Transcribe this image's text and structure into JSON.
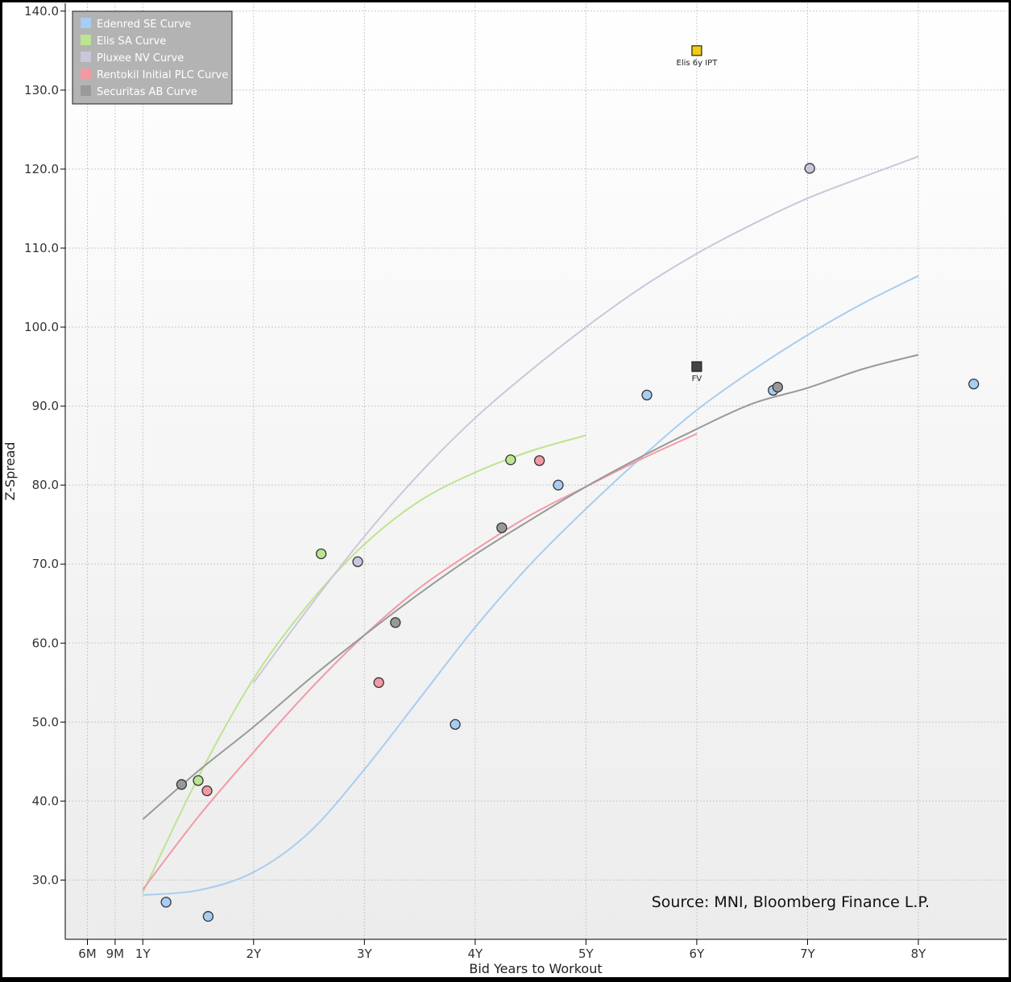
{
  "chart_data": {
    "type": "scatter",
    "title": "",
    "xlabel": "Bid Years to Workout",
    "ylabel": "Z-Spread",
    "xlim": [
      0.3,
      8.8
    ],
    "ylim": [
      22.5,
      141
    ],
    "grid": true,
    "legend_position": "top-left",
    "source": "Source: MNI, Bloomberg Finance L.P.",
    "x_ticks": [
      {
        "label": "6M",
        "value": 0.5
      },
      {
        "label": "9M",
        "value": 0.75
      },
      {
        "label": "1Y",
        "value": 1
      },
      {
        "label": "2Y",
        "value": 2
      },
      {
        "label": "3Y",
        "value": 3
      },
      {
        "label": "4Y",
        "value": 4
      },
      {
        "label": "5Y",
        "value": 5
      },
      {
        "label": "6Y",
        "value": 6
      },
      {
        "label": "7Y",
        "value": 7
      },
      {
        "label": "8Y",
        "value": 8
      }
    ],
    "y_ticks": [
      {
        "label": "30.0",
        "value": 30
      },
      {
        "label": "40.0",
        "value": 40
      },
      {
        "label": "50.0",
        "value": 50
      },
      {
        "label": "60.0",
        "value": 60
      },
      {
        "label": "70.0",
        "value": 70
      },
      {
        "label": "80.0",
        "value": 80
      },
      {
        "label": "90.0",
        "value": 90
      },
      {
        "label": "100.0",
        "value": 100
      },
      {
        "label": "110.0",
        "value": 110
      },
      {
        "label": "120.0",
        "value": 120
      },
      {
        "label": "130.0",
        "value": 130
      },
      {
        "label": "140.0",
        "value": 140
      }
    ],
    "series": [
      {
        "name": "Edenred SE Curve",
        "color": "#a6cdf2",
        "curve": [
          [
            1,
            28.1
          ],
          [
            1.5,
            28.7
          ],
          [
            2,
            31
          ],
          [
            2.5,
            36
          ],
          [
            3,
            44
          ],
          [
            3.5,
            53
          ],
          [
            4,
            62
          ],
          [
            4.5,
            70
          ],
          [
            5,
            77
          ],
          [
            5.5,
            83.5
          ],
          [
            6,
            89.5
          ],
          [
            6.5,
            94.5
          ],
          [
            7,
            99
          ],
          [
            7.5,
            103
          ],
          [
            8,
            106.5
          ]
        ],
        "points": [
          [
            1.21,
            27.2
          ],
          [
            1.59,
            25.4
          ],
          [
            3.82,
            49.7
          ],
          [
            4.75,
            80
          ],
          [
            5.55,
            91.4
          ],
          [
            6.69,
            92
          ],
          [
            8.5,
            92.8
          ]
        ]
      },
      {
        "name": "Elis SA Curve",
        "color": "#bde48f",
        "curve": [
          [
            1,
            28.4
          ],
          [
            1.5,
            43
          ],
          [
            2,
            55.5
          ],
          [
            2.5,
            65
          ],
          [
            3,
            72.5
          ],
          [
            3.5,
            78
          ],
          [
            4,
            81.6
          ],
          [
            4.5,
            84.3
          ],
          [
            5,
            86.3
          ]
        ],
        "points": [
          [
            1.5,
            42.6
          ],
          [
            2.61,
            71.3
          ],
          [
            4.32,
            83.2
          ]
        ]
      },
      {
        "name": "Pluxee NV Curve",
        "color": "#ccc6dc",
        "curve": [
          [
            2,
            55
          ],
          [
            2.5,
            64.5
          ],
          [
            3,
            73.5
          ],
          [
            3.5,
            81.5
          ],
          [
            4,
            88.5
          ],
          [
            4.5,
            94.5
          ],
          [
            5,
            100
          ],
          [
            5.5,
            105
          ],
          [
            6,
            109.3
          ],
          [
            6.5,
            113
          ],
          [
            7,
            116.3
          ],
          [
            7.5,
            119
          ],
          [
            8,
            121.6
          ]
        ],
        "points": [
          [
            2.94,
            70.3
          ],
          [
            7.02,
            120.1
          ]
        ]
      },
      {
        "name": "Rentokil Initial PLC Curve",
        "color": "#f29aa4",
        "curve": [
          [
            1,
            28.8
          ],
          [
            1.5,
            38
          ],
          [
            2,
            46.2
          ],
          [
            2.5,
            54
          ],
          [
            3,
            61
          ],
          [
            3.5,
            67
          ],
          [
            4,
            71.8
          ],
          [
            4.5,
            76.2
          ],
          [
            5,
            79.8
          ],
          [
            5.5,
            83.3
          ],
          [
            6,
            86.5
          ]
        ],
        "points": [
          [
            1.58,
            41.3
          ],
          [
            3.13,
            55
          ],
          [
            4.58,
            83.1
          ]
        ]
      },
      {
        "name": "Securitas AB Curve",
        "color": "#999999",
        "curve": [
          [
            1,
            37.7
          ],
          [
            1.5,
            43.8
          ],
          [
            2,
            49.4
          ],
          [
            2.5,
            55.4
          ],
          [
            3,
            61
          ],
          [
            3.5,
            66.3
          ],
          [
            4,
            71.2
          ],
          [
            4.5,
            75.6
          ],
          [
            5,
            79.8
          ],
          [
            5.5,
            83.6
          ],
          [
            6,
            87.1
          ],
          [
            6.5,
            90.3
          ],
          [
            7,
            92.3
          ],
          [
            7.5,
            94.7
          ],
          [
            8,
            96.5
          ]
        ],
        "points": [
          [
            1.35,
            42.1
          ],
          [
            3.28,
            62.6
          ],
          [
            4.24,
            74.6
          ],
          [
            6.73,
            92.4
          ]
        ]
      }
    ],
    "annotations": [
      {
        "label": "Elis 6y IPT",
        "x": 6,
        "y": 135,
        "color": "#f0cc14"
      },
      {
        "label": "FV",
        "x": 6,
        "y": 95,
        "color": "#444444"
      }
    ]
  }
}
